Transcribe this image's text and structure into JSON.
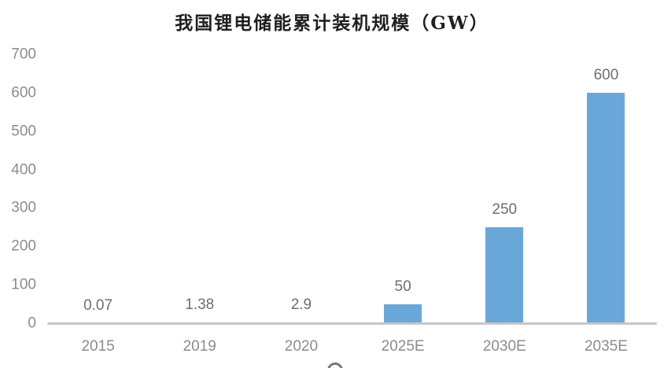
{
  "chart_data": {
    "type": "bar",
    "title": "我国锂电储能累计装机规模（GW）",
    "categories": [
      "2015",
      "2019",
      "2020",
      "2025E",
      "2030E",
      "2035E"
    ],
    "values": [
      0.07,
      1.38,
      2.9,
      50,
      250,
      600
    ],
    "data_labels": [
      "0.07",
      "1.38",
      "2.9",
      "50",
      "250",
      "600"
    ],
    "y_ticks": [
      0,
      100,
      200,
      300,
      400,
      500,
      600,
      700
    ],
    "ylim": [
      0,
      700
    ],
    "xlabel": "",
    "ylabel": "",
    "grid": false,
    "legend": "none",
    "colors": {
      "bar": "#6aa7d9",
      "axis_line": "#c6c6c6",
      "axis_tick_label": "#8c8c8c",
      "data_label": "#6e6e6e",
      "title": "#1f1f1f"
    }
  }
}
